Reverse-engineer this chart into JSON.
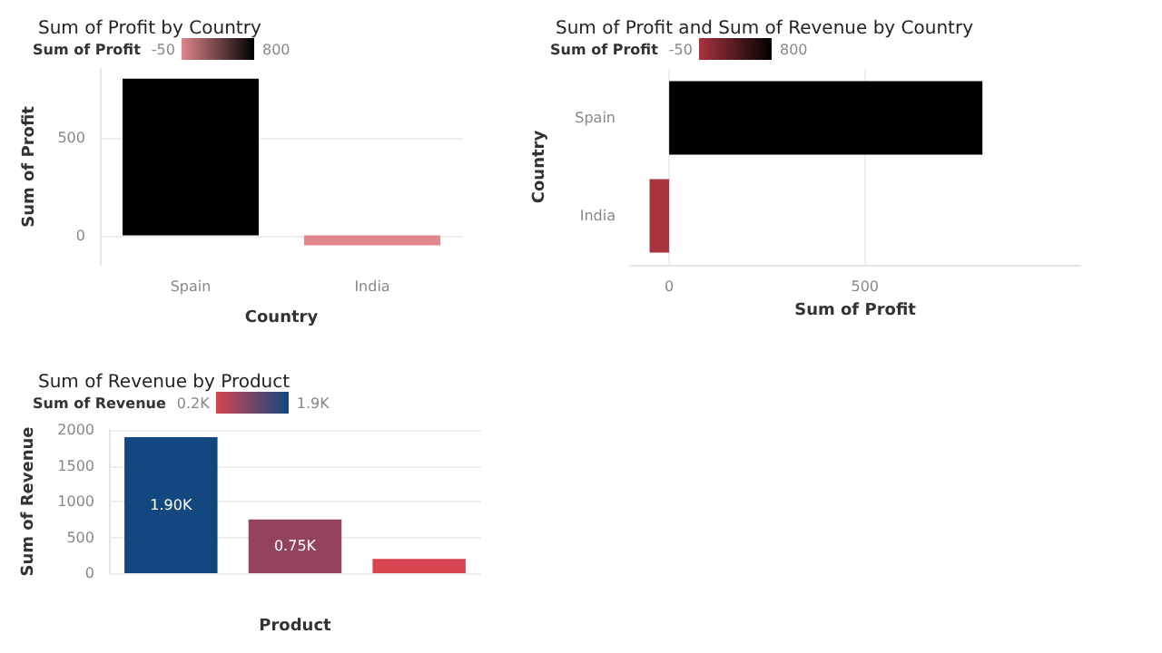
{
  "chart_data": [
    {
      "type": "bar",
      "title": "Sum of Profit by Country",
      "xlabel": "Country",
      "ylabel": "Sum of Profit",
      "categories": [
        "Spain",
        "India"
      ],
      "values": [
        800,
        -50
      ],
      "colors": [
        "#000000",
        "#e0868c"
      ],
      "ylim": [
        -150,
        850
      ],
      "yticks": [
        0,
        500
      ],
      "grid": "y",
      "clabel": "Sum of Profit",
      "annotations": [
        "-50",
        "800"
      ]
    },
    {
      "type": "bar",
      "orientation": "horizontal",
      "title": "Sum of Profit and Sum of Revenue by Country",
      "xlabel": "Sum of Profit",
      "ylabel": "Country",
      "categories": [
        "Spain",
        "India"
      ],
      "values": [
        800,
        -50
      ],
      "colors": [
        "#000000",
        "#a8343f"
      ],
      "xlim": [
        -100,
        1050
      ],
      "xticks": [
        0,
        500
      ],
      "grid": "x",
      "clabel": "Sum of Profit",
      "annotations": [
        "-50",
        "800"
      ]
    },
    {
      "type": "bar",
      "title": "Sum of Revenue by Product",
      "xlabel": "Product",
      "ylabel": "Sum of Revenue",
      "categories": [
        null,
        null,
        null
      ],
      "values": [
        1900,
        750,
        200
      ],
      "colors": [
        "#12477f",
        "#93435f",
        "#d64550"
      ],
      "value_labels": [
        "1.90K",
        "0.75K",
        null
      ],
      "ylim": [
        0,
        2000
      ],
      "yticks": [
        0,
        500,
        1000,
        1500,
        2000
      ],
      "grid": "y",
      "clabel": "Sum of Revenue",
      "annotations": [
        "0.2K",
        "1.9K"
      ]
    }
  ]
}
